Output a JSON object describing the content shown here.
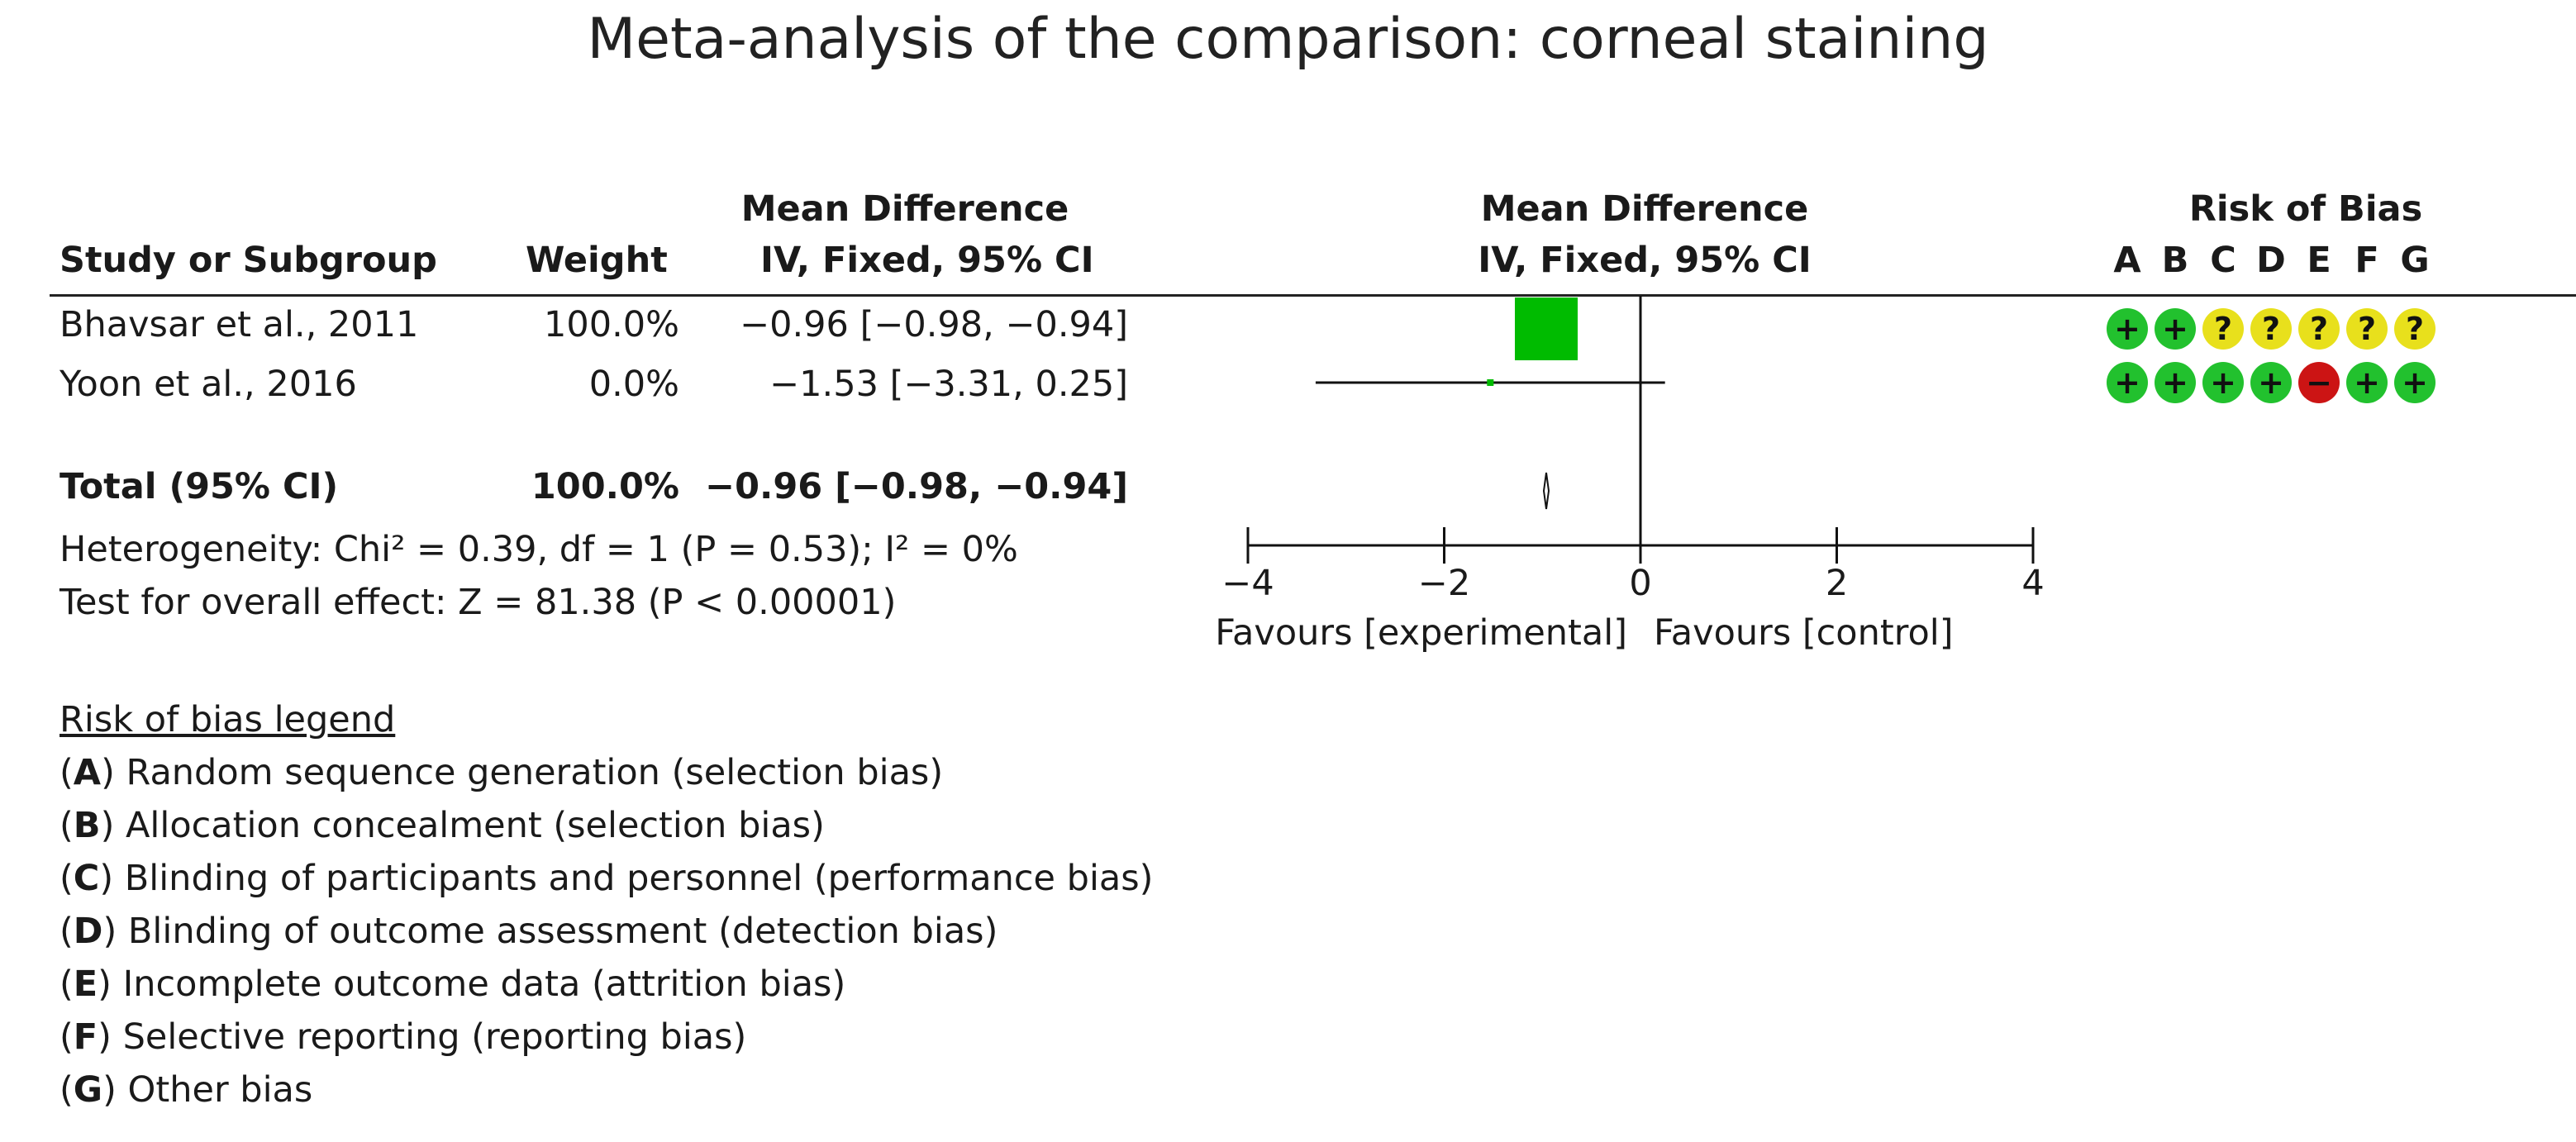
{
  "title": "Meta-analysis of the comparison: corneal staining",
  "table": {
    "headers": {
      "study": "Study or Subgroup",
      "weight": "Weight",
      "md_line1": "Mean Difference",
      "md_line2": "IV, Fixed, 95% CI"
    },
    "rows": [
      {
        "study": "Bhavsar et al., 2011",
        "weight": "100.0%",
        "ci": "−0.96 [−0.98, −0.94]"
      },
      {
        "study": "Yoon et al., 2016",
        "weight": "0.0%",
        "ci": "−1.53 [−3.31, 0.25]"
      }
    ],
    "total": {
      "label": "Total (95% CI)",
      "weight": "100.0%",
      "ci": "−0.96 [−0.98, −0.94]"
    },
    "heterogeneity": "Heterogeneity: Chi² = 0.39, df = 1 (P = 0.53); I² = 0%",
    "overall_effect": "Test for overall effect: Z = 81.38 (P < 0.00001)"
  },
  "plot_header": {
    "line1": "Mean Difference",
    "line2": "IV, Fixed, 95% CI"
  },
  "chart_data": {
    "type": "forest",
    "title": "Mean Difference IV, Fixed, 95% CI",
    "xlim": [
      -4,
      4
    ],
    "ticks": [
      -4,
      -2,
      0,
      2,
      4
    ],
    "tick_labels": [
      "−4",
      "−2",
      "0",
      "2",
      "4"
    ],
    "xlabel_left": "Favours [experimental]",
    "xlabel_right": "Favours [control]",
    "studies": [
      {
        "name": "Bhavsar et al., 2011",
        "estimate": -0.96,
        "lower": -0.98,
        "upper": -0.94,
        "weight": 100.0
      },
      {
        "name": "Yoon et al., 2016",
        "estimate": -1.53,
        "lower": -3.31,
        "upper": 0.25,
        "weight": 0.0
      }
    ],
    "pooled": {
      "estimate": -0.96,
      "lower": -0.98,
      "upper": -0.94
    },
    "colors": {
      "square": "#00bb00",
      "line": "#111111"
    }
  },
  "risk_of_bias": {
    "title": "Risk of Bias",
    "columns": [
      "A",
      "B",
      "C",
      "D",
      "E",
      "F",
      "G"
    ],
    "rows": [
      [
        "+",
        "+",
        "?",
        "?",
        "?",
        "?",
        "?"
      ],
      [
        "+",
        "+",
        "+",
        "+",
        "−",
        "+",
        "+"
      ]
    ],
    "colors": {
      "low": "#22c12e",
      "unclear": "#e8e01c",
      "high": "#cc1414"
    }
  },
  "legend": {
    "title": "Risk of bias legend",
    "items": [
      {
        "key": "A",
        "text": " Random sequence generation (selection bias)"
      },
      {
        "key": "B",
        "text": " Allocation concealment (selection bias)"
      },
      {
        "key": "C",
        "text": " Blinding of participants and personnel (performance bias)"
      },
      {
        "key": "D",
        "text": " Blinding of outcome assessment (detection bias)"
      },
      {
        "key": "E",
        "text": " Incomplete outcome data (attrition bias)"
      },
      {
        "key": "F",
        "text": " Selective reporting (reporting bias)"
      },
      {
        "key": "G",
        "text": " Other bias"
      }
    ]
  }
}
